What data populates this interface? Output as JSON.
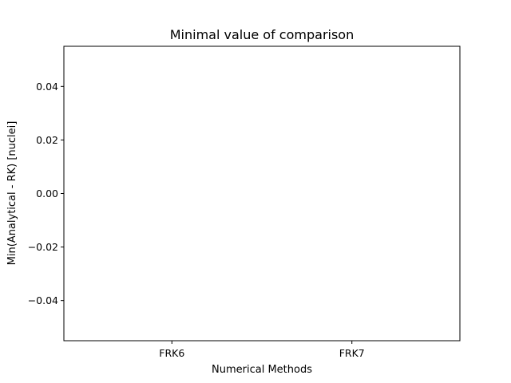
{
  "chart_data": {
    "type": "bar",
    "title": "Minimal value of comparison",
    "xlabel": "Numerical Methods",
    "ylabel": "Min(Analytical - RK) [nuclei]",
    "categories": [
      "FRK6",
      "FRK7"
    ],
    "values": [
      0,
      0
    ],
    "ylim": [
      -0.055,
      0.055
    ],
    "yticks": [
      -0.04,
      -0.02,
      0.0,
      0.02,
      0.04
    ],
    "ytick_labels": [
      "−0.04",
      "−0.02",
      "0.00",
      "0.02",
      "0.04"
    ],
    "grid": false,
    "colors": {
      "bar": "#1f77b4",
      "axes": "#000000",
      "background": "#ffffff"
    }
  }
}
